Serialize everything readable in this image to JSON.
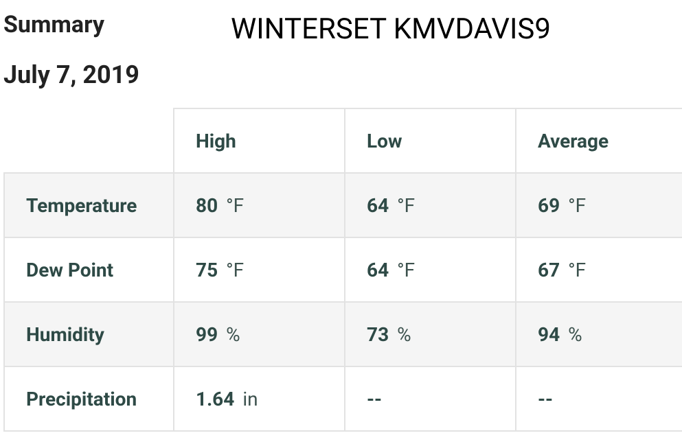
{
  "header": {
    "title": "Summary",
    "date": "July 7, 2019",
    "station": "WINTERSET KMVDAVIS9"
  },
  "table": {
    "columns": [
      "High",
      "Low",
      "Average"
    ],
    "rows": [
      {
        "label": "Temperature",
        "cells": [
          {
            "value": 80,
            "unit": "°F"
          },
          {
            "value": 64,
            "unit": "°F"
          },
          {
            "value": 69,
            "unit": "°F"
          }
        ]
      },
      {
        "label": "Dew Point",
        "cells": [
          {
            "value": 75,
            "unit": "°F"
          },
          {
            "value": 64,
            "unit": "°F"
          },
          {
            "value": 67,
            "unit": "°F"
          }
        ]
      },
      {
        "label": "Humidity",
        "cells": [
          {
            "value": 99,
            "unit": "%"
          },
          {
            "value": 73,
            "unit": "%"
          },
          {
            "value": 94,
            "unit": "%"
          }
        ]
      },
      {
        "label": "Precipitation",
        "cells": [
          {
            "value": 1.64,
            "unit": "in"
          },
          {
            "value": "--"
          },
          {
            "value": "--"
          }
        ]
      }
    ]
  }
}
